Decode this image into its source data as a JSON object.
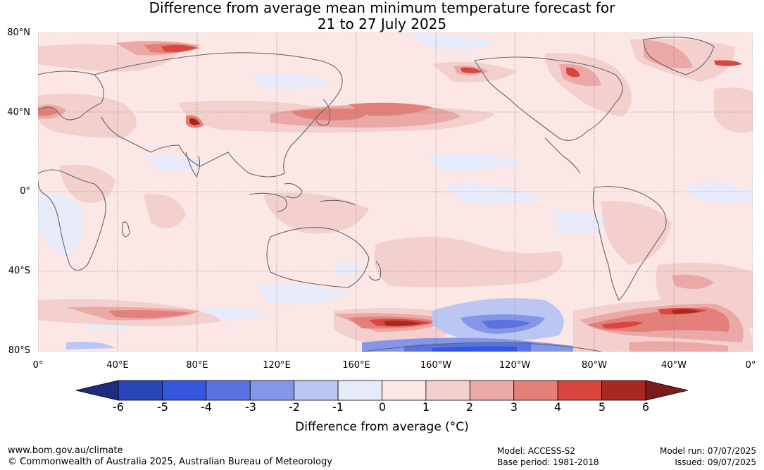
{
  "title": {
    "line1": "Difference from average mean minimum temperature forecast for",
    "line2": "21 to 27 July 2025"
  },
  "map": {
    "lat_labels": [
      "80°N",
      "40°N",
      "0°",
      "40°S",
      "80°S"
    ],
    "lon_labels": [
      "0°",
      "40°E",
      "80°E",
      "120°E",
      "160°E",
      "160°W",
      "120°W",
      "80°W",
      "40°W",
      "0°"
    ],
    "land_outline_color": "#666666",
    "grid_color": "#777777"
  },
  "colorbar": {
    "ticks": [
      "-6",
      "-5",
      "-4",
      "-3",
      "-2",
      "-1",
      "0",
      "1",
      "2",
      "3",
      "4",
      "5",
      "6"
    ],
    "colors": [
      "#1e2d80",
      "#2a45b8",
      "#3457e0",
      "#5b73e2",
      "#8496e8",
      "#bcc6f2",
      "#e8ebfa",
      "#fbe7e6",
      "#f3cfcd",
      "#eaa9a6",
      "#e3807a",
      "#d9463d",
      "#a8271f",
      "#7a1c17"
    ],
    "label": "Difference from average (°C)"
  },
  "footer": {
    "url": "www.bom.gov.au/climate",
    "copyright": "© Commonwealth of Australia 2025, Australian Bureau of Meteorology",
    "model": "Model: ACCESS-S2",
    "base_period": "Base period: 1981-2018",
    "model_run": "Model run: 07/07/2025",
    "issued": "Issued: 09/07/2025"
  }
}
